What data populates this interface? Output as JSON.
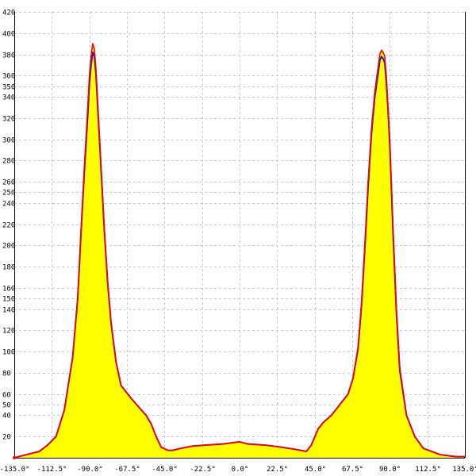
{
  "chart_data": {
    "type": "area",
    "xlim": [
      -135,
      135
    ],
    "ylim": [
      0,
      420
    ],
    "grid": true,
    "x_ticks": [
      {
        "value": -135,
        "label": "-135.0°"
      },
      {
        "value": -112.5,
        "label": "-112.5°"
      },
      {
        "value": -90,
        "label": "-90.0°"
      },
      {
        "value": -67.5,
        "label": "-67.5°"
      },
      {
        "value": -45,
        "label": "-45.0°"
      },
      {
        "value": -22.5,
        "label": "-22.5°"
      },
      {
        "value": 0,
        "label": "0.0°"
      },
      {
        "value": 22.5,
        "label": "22.5°"
      },
      {
        "value": 45,
        "label": "45.0°"
      },
      {
        "value": 67.5,
        "label": "67.5°"
      },
      {
        "value": 90,
        "label": "90.0°"
      },
      {
        "value": 112.5,
        "label": "112.5°"
      },
      {
        "value": 135,
        "label": "135.0°"
      }
    ],
    "y_ticks": [
      20,
      40,
      50,
      60,
      80,
      100,
      120,
      140,
      150,
      160,
      180,
      200,
      220,
      240,
      250,
      260,
      280,
      300,
      320,
      340,
      350,
      360,
      380,
      400,
      420
    ],
    "colors": {
      "fill": "#ffff00",
      "red_series": "#ff0000",
      "blue_series": "#1e1eb4"
    },
    "series": [
      {
        "color": "#ff0000",
        "x": [
          -140,
          -130,
          -120,
          -115,
          -110,
          -105,
          -100,
          -97,
          -95,
          -93,
          -91,
          -90,
          -89,
          -88,
          -87,
          -86,
          -85,
          -83,
          -81,
          -79,
          -77,
          -74,
          -71,
          -68,
          -65,
          -60,
          -56,
          -53,
          -50,
          -47,
          -43,
          -40,
          -35,
          -28,
          -20,
          -10,
          0,
          5,
          15,
          25,
          33,
          40,
          43,
          47,
          50,
          55,
          60,
          65,
          68,
          71,
          73,
          75,
          77,
          79,
          81,
          83,
          84,
          85,
          86,
          87,
          88,
          89,
          90,
          92,
          94,
          96,
          100,
          105,
          110,
          115,
          120,
          125,
          130,
          135,
          140
        ],
        "y": [
          0,
          2,
          6,
          12,
          20,
          45,
          95,
          150,
          215,
          275,
          330,
          360,
          378,
          390,
          385,
          365,
          335,
          275,
          215,
          165,
          128,
          90,
          68,
          62,
          56,
          47,
          40,
          32,
          20,
          10,
          7,
          7,
          9,
          11,
          12,
          13,
          15,
          13,
          12,
          10,
          8,
          6,
          12,
          27,
          33,
          40,
          50,
          60,
          75,
          105,
          145,
          200,
          260,
          310,
          345,
          368,
          380,
          384,
          382,
          378,
          358,
          330,
          300,
          215,
          140,
          85,
          40,
          20,
          9,
          6,
          3,
          2,
          1,
          1,
          0
        ]
      },
      {
        "color": "#1e1eb4",
        "x": [
          -140,
          -130,
          -120,
          -115,
          -110,
          -105,
          -100,
          -97,
          -95,
          -93,
          -91,
          -90,
          -89,
          -88,
          -87,
          -86,
          -85,
          -83,
          -81,
          -79,
          -77,
          -74,
          -71,
          -68,
          -65,
          -60,
          -56,
          -53,
          -50,
          -47,
          -43,
          -40,
          -35,
          -28,
          -20,
          -10,
          0,
          5,
          15,
          25,
          33,
          40,
          43,
          47,
          50,
          55,
          60,
          65,
          68,
          71,
          73,
          75,
          77,
          79,
          81,
          83,
          84,
          85,
          86,
          87,
          88,
          89,
          90,
          92,
          94,
          96,
          100,
          105,
          110,
          115,
          120,
          125,
          130,
          135,
          140
        ],
        "y": [
          0,
          2,
          6,
          12,
          20,
          45,
          95,
          150,
          212,
          270,
          322,
          352,
          370,
          382,
          378,
          360,
          330,
          272,
          213,
          164,
          127,
          90,
          68,
          62,
          56,
          47,
          40,
          32,
          20,
          10,
          7,
          7,
          9,
          11,
          12,
          13,
          15,
          13,
          12,
          10,
          8,
          6,
          12,
          27,
          33,
          40,
          50,
          60,
          75,
          103,
          142,
          196,
          255,
          305,
          340,
          362,
          374,
          378,
          376,
          372,
          352,
          326,
          295,
          210,
          136,
          82,
          40,
          20,
          9,
          6,
          3,
          2,
          1,
          1,
          0
        ]
      }
    ]
  }
}
